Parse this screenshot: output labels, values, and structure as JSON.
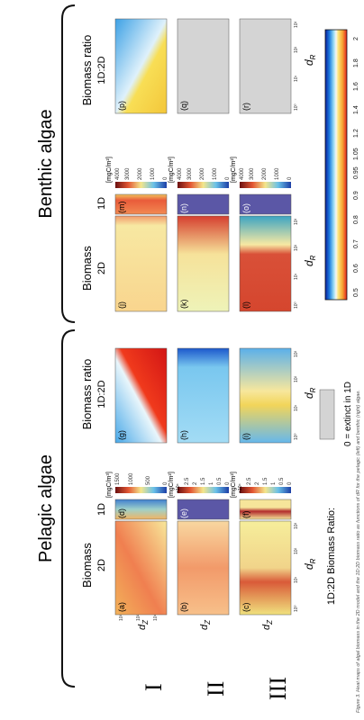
{
  "sections": {
    "pelagic": "Pelagic algae",
    "benthic": "Benthic algae"
  },
  "column_headers": {
    "biomass": "Biomass",
    "biomass_ratio": "Biomass ratio",
    "d2": "2D",
    "d1": "1D",
    "ratio_1d2d": "1D:2D"
  },
  "rows": {
    "I": "I",
    "II": "II",
    "III": "III"
  },
  "panel_labels": [
    "(a)",
    "(b)",
    "(c)",
    "(d)",
    "(e)",
    "(f)",
    "(g)",
    "(h)",
    "(i)",
    "(j)",
    "(k)",
    "(l)",
    "(m)",
    "(n)",
    "(o)",
    "(p)",
    "(q)",
    "(r)"
  ],
  "units": {
    "pelagic_I": "[mgC/m³]",
    "pelagic_II": "[mgC/m²]",
    "pelagic_III": "[mgC/m²]",
    "benthic_I": "[mgC/m²]",
    "benthic_II": "[mgC/m²]",
    "benthic_III": "[mgC/m²]"
  },
  "colorbar_ticks": {
    "pelagic_I": [
      "0",
      "500",
      "1000",
      "1500"
    ],
    "pelagic_II": [
      "0",
      "0.5",
      "1",
      "1.5",
      "2",
      "2.5",
      "3"
    ],
    "pelagic_II_mult": "×10⁴",
    "pelagic_III": [
      "0",
      "0.5",
      "1",
      "1.5",
      "2",
      "2.5",
      "3"
    ],
    "pelagic_III_mult": "×10⁴",
    "benthic": [
      "0",
      "1000",
      "2000",
      "3000",
      "4000"
    ]
  },
  "axes": {
    "x_label": "d",
    "x_sub": "R",
    "y_label": "d",
    "y_sub": "Z",
    "ticks": [
      "10⁰",
      "10¹",
      "10²",
      "10³"
    ]
  },
  "ratio_colorbar": {
    "ticks": [
      "0.5",
      "0.6",
      "0.7",
      "0.8",
      "0.9",
      "0.95",
      "1.05",
      "1.2",
      "1.4",
      "1.6",
      "1.8",
      "2"
    ]
  },
  "legend": {
    "label": "1D:2D Biomass Ratio:",
    "extinct": "0 = extinct in 1D"
  },
  "caption": "Figure 3. Heat maps of algal biomass in the 2D model and the 1D:2D biomass ratio as functions of dR for the pelagic (left) and benthic (right) algae."
}
